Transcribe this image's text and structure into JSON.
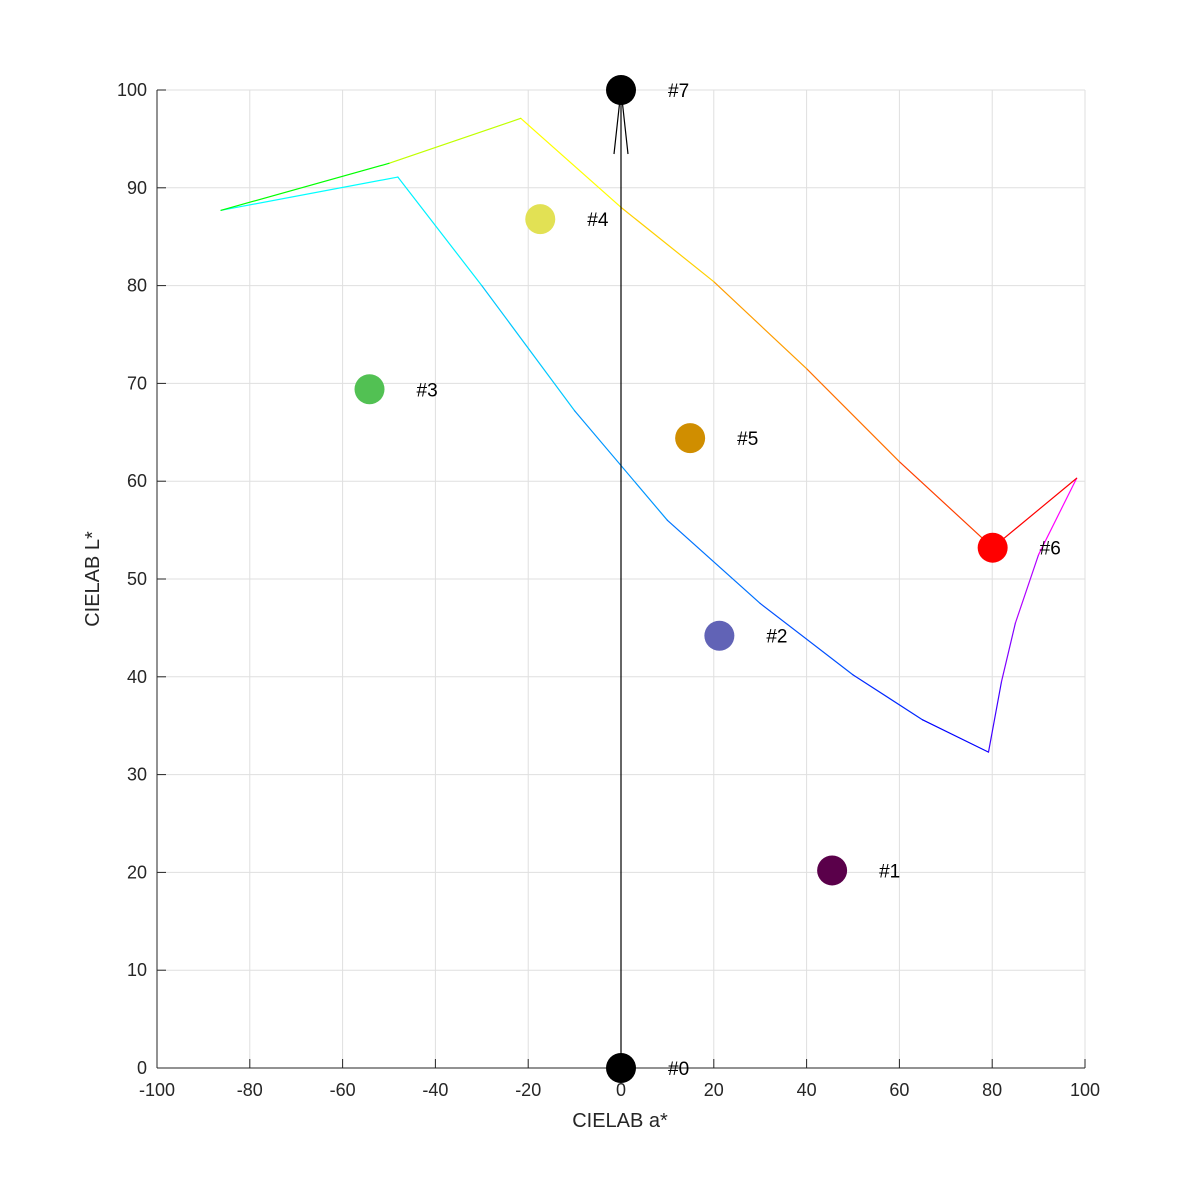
{
  "chart_data": {
    "type": "scatter",
    "xlabel": "CIELAB a*",
    "ylabel": "CIELAB L*",
    "xlim": [
      -100,
      100
    ],
    "ylim": [
      0,
      100
    ],
    "xticks": [
      "-100",
      "-80",
      "-60",
      "-40",
      "-20",
      "0",
      "20",
      "40",
      "60",
      "80",
      "100"
    ],
    "yticks": [
      "0",
      "10",
      "20",
      "30",
      "40",
      "50",
      "60",
      "70",
      "80",
      "90",
      "100"
    ],
    "grid": true,
    "points": [
      {
        "label": "#0",
        "a": 0,
        "L": 0,
        "color": "#000000"
      },
      {
        "label": "#1",
        "a": 45.5,
        "L": 20.2,
        "color": "#5a004a"
      },
      {
        "label": "#2",
        "a": 21.2,
        "L": 44.2,
        "color": "#6163b6"
      },
      {
        "label": "#3",
        "a": -54.2,
        "L": 69.4,
        "color": "#52c153"
      },
      {
        "label": "#4",
        "a": -17.4,
        "L": 86.8,
        "color": "#e2e154"
      },
      {
        "label": "#5",
        "a": 14.9,
        "L": 64.4,
        "color": "#d08e00"
      },
      {
        "label": "#6",
        "a": 80.1,
        "L": 53.2,
        "color": "#ff0000"
      },
      {
        "label": "#7",
        "a": 0,
        "L": 100,
        "color": "#000000"
      }
    ],
    "l_axis_arrow": {
      "from": [
        0,
        0
      ],
      "to": [
        0,
        100
      ],
      "color": "#000000"
    },
    "gamut_boundary": [
      {
        "a": -86.2,
        "L": 87.7,
        "color": "#00ff00"
      },
      {
        "a": -48.1,
        "L": 91.1,
        "color": "#00ffff"
      },
      {
        "a": -30.0,
        "L": 80.0,
        "color": "#00f2ff"
      },
      {
        "a": -10.0,
        "L": 67.2,
        "color": "#00c8ff"
      },
      {
        "a": 10.0,
        "L": 56.0,
        "color": "#0096ff"
      },
      {
        "a": 30.0,
        "L": 47.5,
        "color": "#0073ff"
      },
      {
        "a": 50.0,
        "L": 40.2,
        "color": "#0050ff"
      },
      {
        "a": 65.0,
        "L": 35.6,
        "color": "#0028ff"
      },
      {
        "a": 79.2,
        "L": 32.3,
        "color": "#0000ff"
      },
      {
        "a": 82.0,
        "L": 39.5,
        "color": "#4000ff"
      },
      {
        "a": 85.0,
        "L": 45.5,
        "color": "#8000ff"
      },
      {
        "a": 90.0,
        "L": 52.5,
        "color": "#b000ff"
      },
      {
        "a": 98.2,
        "L": 60.3,
        "color": "#ff00ff"
      },
      {
        "a": 80.1,
        "L": 53.2,
        "color": "#ff0000"
      },
      {
        "a": 60.0,
        "L": 62.0,
        "color": "#ff4000"
      },
      {
        "a": 40.0,
        "L": 71.5,
        "color": "#ff7000"
      },
      {
        "a": 20.0,
        "L": 80.4,
        "color": "#ff9d00"
      },
      {
        "a": 0.0,
        "L": 88.0,
        "color": "#ffd000"
      },
      {
        "a": -21.6,
        "L": 97.1,
        "color": "#ffff00"
      },
      {
        "a": -50.0,
        "L": 92.5,
        "color": "#c0ff00"
      },
      {
        "a": -86.2,
        "L": 87.7,
        "color": "#00ff00"
      }
    ]
  }
}
